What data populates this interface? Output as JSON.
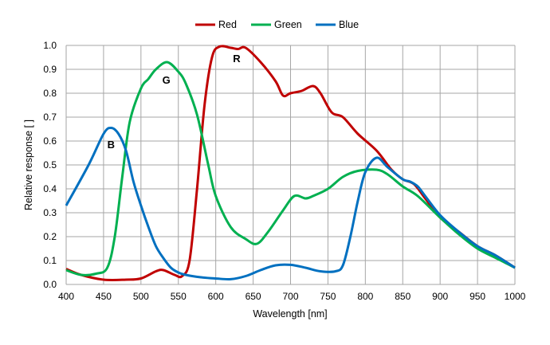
{
  "chart_data": {
    "type": "line",
    "title": "",
    "xlabel": "Wavelength [nm]",
    "ylabel": "Relative response [ ]",
    "xlim": [
      400,
      1000
    ],
    "ylim": [
      0,
      1.0
    ],
    "xticks": [
      400,
      450,
      500,
      550,
      600,
      650,
      700,
      750,
      800,
      850,
      900,
      950,
      1000
    ],
    "yticks": [
      0.0,
      0.1,
      0.2,
      0.3,
      0.4,
      0.5,
      0.6,
      0.7,
      0.8,
      0.9,
      1.0
    ],
    "ytick_labels": [
      "0.0",
      "0.1",
      "0.2",
      "0.3",
      "0.4",
      "0.5",
      "0.6",
      "0.7",
      "0.8",
      "0.9",
      "1.0"
    ],
    "grid": true,
    "legend_position": "top",
    "series": [
      {
        "name": "Red",
        "color": "#c00000",
        "x": [
          400,
          420,
          450,
          480,
          500,
          520,
          530,
          545,
          555,
          565,
          575,
          585,
          595,
          605,
          620,
          630,
          640,
          660,
          680,
          690,
          700,
          715,
          730,
          740,
          755,
          770,
          790,
          815,
          835,
          850,
          865,
          880,
          900,
          925,
          950,
          975,
          1000
        ],
        "y": [
          0.065,
          0.04,
          0.02,
          0.02,
          0.025,
          0.055,
          0.06,
          0.04,
          0.035,
          0.1,
          0.4,
          0.75,
          0.95,
          0.995,
          0.99,
          0.985,
          0.99,
          0.93,
          0.85,
          0.79,
          0.8,
          0.81,
          0.83,
          0.8,
          0.72,
          0.7,
          0.63,
          0.56,
          0.48,
          0.44,
          0.42,
          0.36,
          0.28,
          0.22,
          0.16,
          0.12,
          0.07
        ]
      },
      {
        "name": "Green",
        "color": "#00b050",
        "x": [
          400,
          420,
          440,
          455,
          465,
          475,
          485,
          500,
          510,
          520,
          535,
          550,
          560,
          575,
          590,
          600,
          620,
          640,
          655,
          670,
          690,
          705,
          720,
          730,
          750,
          770,
          790,
          815,
          830,
          850,
          870,
          900,
          925,
          950,
          975,
          1000
        ],
        "y": [
          0.06,
          0.04,
          0.045,
          0.07,
          0.2,
          0.45,
          0.68,
          0.82,
          0.86,
          0.9,
          0.93,
          0.89,
          0.84,
          0.71,
          0.5,
          0.37,
          0.24,
          0.19,
          0.17,
          0.22,
          0.31,
          0.37,
          0.36,
          0.37,
          0.4,
          0.45,
          0.475,
          0.48,
          0.46,
          0.41,
          0.37,
          0.28,
          0.21,
          0.15,
          0.11,
          0.07
        ]
      },
      {
        "name": "Blue",
        "color": "#0070c0",
        "x": [
          400,
          430,
          450,
          460,
          470,
          480,
          490,
          500,
          510,
          520,
          530,
          540,
          550,
          560,
          580,
          600,
          620,
          640,
          660,
          680,
          700,
          720,
          740,
          760,
          770,
          780,
          790,
          800,
          815,
          830,
          850,
          860,
          870,
          880,
          900,
          925,
          950,
          975,
          1000
        ],
        "y": [
          0.33,
          0.5,
          0.63,
          0.655,
          0.63,
          0.56,
          0.43,
          0.33,
          0.24,
          0.16,
          0.11,
          0.07,
          0.05,
          0.04,
          0.03,
          0.025,
          0.022,
          0.035,
          0.06,
          0.08,
          0.082,
          0.07,
          0.055,
          0.055,
          0.08,
          0.2,
          0.35,
          0.47,
          0.53,
          0.49,
          0.44,
          0.43,
          0.41,
          0.37,
          0.29,
          0.22,
          0.16,
          0.12,
          0.07
        ]
      }
    ],
    "annotations": [
      {
        "text": "R",
        "x": 628,
        "y": 0.93
      },
      {
        "text": "G",
        "x": 534,
        "y": 0.84
      },
      {
        "text": "B",
        "x": 460,
        "y": 0.57
      }
    ]
  }
}
